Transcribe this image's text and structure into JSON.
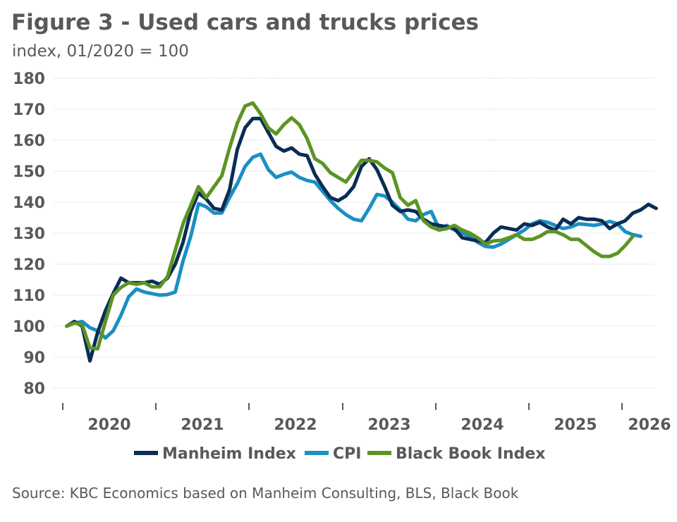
{
  "title": "Figure 3 - Used cars and trucks prices",
  "subtitle": "index, 01/2020 = 100",
  "source": "Source: KBC Economics based on Manheim Consulting, BLS, Black Book",
  "chart_data": {
    "type": "line",
    "ylim": [
      80,
      180
    ],
    "yticks": [
      80,
      90,
      100,
      110,
      120,
      130,
      140,
      150,
      160,
      170,
      180
    ],
    "xticks": [
      "2020",
      "2021",
      "2022",
      "2023",
      "2024",
      "2025",
      "2026"
    ],
    "x_start": "2020-01",
    "grid": "horizontal",
    "legend_placement": "bottom",
    "series": [
      {
        "name": "Manheim Index",
        "color": "#0a2d55",
        "values": [
          100,
          101.5,
          100,
          88.8,
          98,
          105,
          110.5,
          115.5,
          114,
          114,
          114,
          114.5,
          113.5,
          115.5,
          120,
          127,
          137,
          143,
          141,
          138,
          137.5,
          144,
          157,
          164,
          167,
          167,
          162.5,
          158,
          156.5,
          157.5,
          155.5,
          155,
          149,
          145,
          141.5,
          140.5,
          142,
          145,
          151.5,
          154,
          150.5,
          145,
          139,
          137,
          137.5,
          137,
          134.5,
          133,
          132.5,
          132,
          131.5,
          128.5,
          128,
          127.5,
          127,
          130,
          132,
          131.5,
          131,
          133,
          132.5,
          133.5,
          132,
          131,
          134.5,
          133,
          135,
          134.5,
          134.5,
          134,
          131.5,
          133,
          134,
          136.5,
          137.5,
          139.3,
          138
        ]
      },
      {
        "name": "CPI",
        "color": "#1a8fc3",
        "values": [
          100,
          101,
          101.5,
          99.5,
          98.5,
          96.2,
          98.5,
          103.5,
          109.5,
          112,
          111,
          110.5,
          110,
          110.2,
          111,
          121,
          129,
          139.5,
          138.5,
          136.5,
          136.5,
          141.5,
          146,
          151.5,
          154.5,
          155.5,
          150.5,
          148,
          149,
          149.7,
          148,
          147,
          146.5,
          143.5,
          140.5,
          138,
          136,
          134.5,
          134,
          138,
          142.5,
          142,
          140,
          137.5,
          134.5,
          134,
          136,
          137,
          131.5,
          132.5,
          131,
          130,
          129,
          127,
          125.7,
          125.5,
          126.5,
          128,
          129.5,
          131,
          133,
          134,
          133.5,
          132.5,
          131.5,
          132,
          133,
          132.8,
          132.5,
          133,
          133.8,
          133,
          130.5,
          129.5,
          129
        ]
      },
      {
        "name": "Black Book Index",
        "color": "#5c9424",
        "values": [
          100,
          101,
          100.5,
          93,
          92.7,
          101.5,
          110,
          112.5,
          114,
          113.5,
          114,
          112.7,
          112.7,
          116,
          124.5,
          133,
          139,
          145,
          141.5,
          145,
          148.5,
          157.5,
          165.5,
          171,
          172,
          168.5,
          164,
          162,
          165,
          167.2,
          165,
          160.5,
          154,
          152.5,
          149.5,
          148,
          146.5,
          150,
          153.5,
          153.5,
          153,
          151,
          149.5,
          141.5,
          139,
          140.5,
          134,
          132,
          131,
          131.5,
          132.5,
          131,
          130,
          128.5,
          126.5,
          127.5,
          127.7,
          128.5,
          129.5,
          128,
          128,
          129,
          130.5,
          130.5,
          129.5,
          128,
          128,
          126,
          124,
          122.5,
          122.5,
          123.5,
          126,
          129
        ]
      }
    ]
  }
}
